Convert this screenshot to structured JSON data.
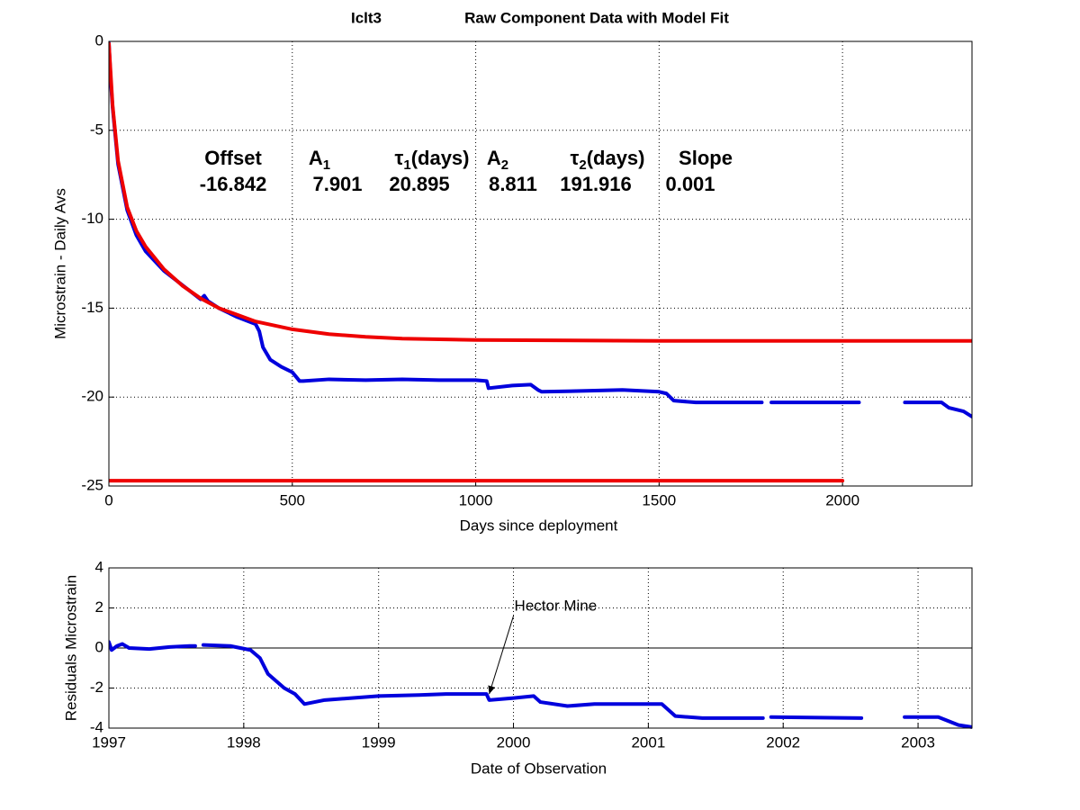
{
  "chart_data": [
    {
      "type": "line",
      "station": "Iclt3",
      "title": "Raw Component Data with Model Fit",
      "xlabel": "Days since deployment",
      "ylabel": "Microstrain - Daily Avs",
      "xlim": [
        0,
        2353
      ],
      "ylim": [
        -25,
        0
      ],
      "xticks": [
        0,
        500,
        1000,
        1500,
        2000
      ],
      "yticks": [
        0,
        -5,
        -10,
        -15,
        -20,
        -25
      ],
      "grid": true,
      "param_headers": [
        {
          "text": "Offset"
        },
        {
          "text": "A",
          "sub": "1"
        },
        {
          "text": "τ",
          "sub": "1",
          "suffix": "(days)"
        },
        {
          "text": "A",
          "sub": "2"
        },
        {
          "text": "τ",
          "sub": "2",
          "suffix": "(days)"
        },
        {
          "text": "Slope"
        }
      ],
      "param_values": [
        -16.842,
        7.901,
        20.895,
        8.811,
        191.916,
        0.001
      ],
      "series": [
        {
          "color": "#0000dd",
          "x": [
            0,
            5,
            10,
            25,
            50,
            75,
            100,
            150,
            200,
            250,
            260,
            270,
            300,
            350,
            400,
            410,
            420,
            440,
            470,
            500,
            520,
            530,
            600,
            700,
            800,
            900,
            1000,
            1030,
            1035,
            1100,
            1150,
            1170,
            1180,
            1300,
            1400,
            1500,
            1520,
            1540,
            1600,
            1700,
            1780,
            1793,
            1806,
            2045,
            2100,
            2170,
            2270,
            2290,
            2330,
            2353
          ],
          "values": [
            -0.1,
            -2.2,
            -3.7,
            -6.9,
            -9.5,
            -10.9,
            -11.8,
            -12.9,
            -13.7,
            -14.5,
            -14.3,
            -14.6,
            -15.0,
            -15.5,
            -15.9,
            -16.3,
            -17.2,
            -17.9,
            -18.3,
            -18.6,
            -19.1,
            -19.1,
            -19.0,
            -19.05,
            -19.0,
            -19.05,
            -19.05,
            -19.1,
            -19.5,
            -19.35,
            -19.3,
            -19.6,
            -19.7,
            -19.65,
            -19.6,
            -19.7,
            -19.8,
            -20.2,
            -20.3,
            -20.3,
            -20.3,
            null,
            -20.3,
            -20.3,
            null,
            -20.3,
            -20.3,
            -20.6,
            -20.8,
            -21.1
          ]
        },
        {
          "color": "#ee0000",
          "x": [
            0,
            10,
            25,
            50,
            75,
            100,
            150,
            200,
            250,
            300,
            400,
            500,
            600,
            700,
            800,
            1000,
            1500,
            2353
          ],
          "values": [
            -0.13,
            -3.58,
            -6.72,
            -9.33,
            -10.66,
            -11.54,
            -12.81,
            -13.73,
            -14.45,
            -15.0,
            -15.75,
            -16.19,
            -16.46,
            -16.61,
            -16.71,
            -16.79,
            -16.84,
            -16.84
          ]
        },
        {
          "color": "#ee0000",
          "x": [
            0,
            2000
          ],
          "values": [
            -24.7,
            -24.7
          ]
        }
      ]
    },
    {
      "type": "line",
      "xlabel": "Date of Observation",
      "ylabel": "Residuals Microstrain",
      "xlim": [
        1997,
        2003.4
      ],
      "ylim": [
        -4,
        4
      ],
      "xticks": [
        1997,
        1998,
        1999,
        2000,
        2001,
        2002,
        2003
      ],
      "yticks": [
        -4,
        -2,
        0,
        2,
        4
      ],
      "grid": true,
      "zero_line": true,
      "annotation": {
        "text": "Hector Mine",
        "x": 1999.82,
        "y": -2.3
      },
      "series": [
        {
          "color": "#0000dd",
          "x": [
            1997.0,
            1997.02,
            1997.06,
            1997.1,
            1997.15,
            1997.3,
            1997.45,
            1997.6,
            1997.64,
            1997.67,
            1997.7,
            1997.9,
            1998.05,
            1998.12,
            1998.18,
            1998.3,
            1998.38,
            1998.45,
            1998.6,
            1998.8,
            1999.0,
            1999.3,
            1999.5,
            1999.8,
            1999.82,
            2000.0,
            2000.15,
            2000.2,
            2000.4,
            2000.6,
            2001.1,
            2001.2,
            2001.4,
            2001.85,
            2001.88,
            2001.91,
            2002.58,
            2002.75,
            2002.9,
            2003.15,
            2003.3,
            2003.4
          ],
          "values": [
            0.3,
            -0.1,
            0.1,
            0.2,
            0.0,
            -0.05,
            0.05,
            0.1,
            0.1,
            null,
            0.15,
            0.1,
            -0.1,
            -0.5,
            -1.3,
            -2.0,
            -2.3,
            -2.8,
            -2.6,
            -2.5,
            -2.4,
            -2.35,
            -2.3,
            -2.3,
            -2.6,
            -2.5,
            -2.4,
            -2.7,
            -2.9,
            -2.8,
            -2.8,
            -3.4,
            -3.5,
            -3.5,
            null,
            -3.45,
            -3.5,
            null,
            -3.45,
            -3.45,
            -3.85,
            -3.95
          ]
        }
      ]
    }
  ]
}
